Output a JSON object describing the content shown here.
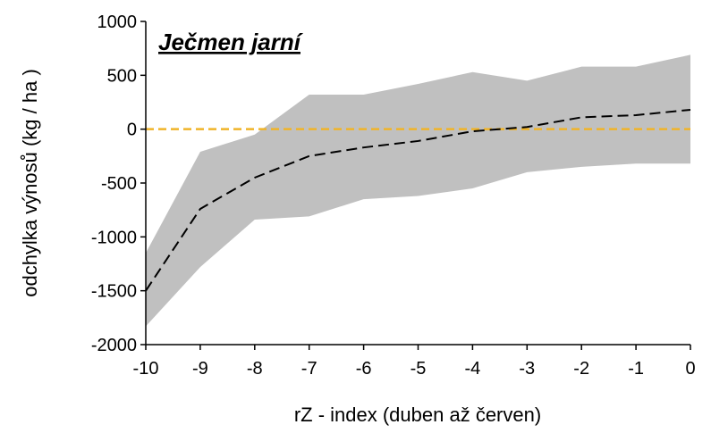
{
  "chart_data": {
    "type": "area",
    "title": "Ječmen jarní",
    "xlabel": "rZ - index (duben až červen)",
    "ylabel": "odchylka výnosů  (kg / ha )",
    "xlim": [
      -10,
      0
    ],
    "ylim": [
      -2000,
      1000
    ],
    "x_ticks": [
      "-10",
      "-9",
      "-8",
      "-7",
      "-6",
      "-5",
      "-4",
      "-3",
      "-2",
      "-1",
      "0"
    ],
    "y_ticks": [
      "1000",
      "500",
      "0",
      "-500",
      "-1000",
      "-1500",
      "-2000"
    ],
    "x": [
      -10,
      -9,
      -8,
      -7,
      -6,
      -5,
      -4,
      -3,
      -2,
      -1,
      0
    ],
    "series": [
      {
        "role": "mean",
        "style": "dashed",
        "values": [
          -1500,
          -740,
          -450,
          -250,
          -170,
          -110,
          -20,
          20,
          110,
          130,
          180
        ]
      },
      {
        "role": "upper",
        "values": [
          -1150,
          -210,
          -50,
          320,
          320,
          420,
          530,
          450,
          580,
          580,
          690
        ]
      },
      {
        "role": "lower",
        "values": [
          -1830,
          -1280,
          -840,
          -810,
          -650,
          -620,
          -550,
          -400,
          -350,
          -320,
          -320
        ]
      }
    ],
    "reference_line": {
      "y": 0,
      "style": "dashed"
    },
    "colors": {
      "band": "#c0c0c0",
      "mean": "#000000",
      "reference": "#f0b429"
    },
    "grid": false,
    "legend": "none"
  }
}
